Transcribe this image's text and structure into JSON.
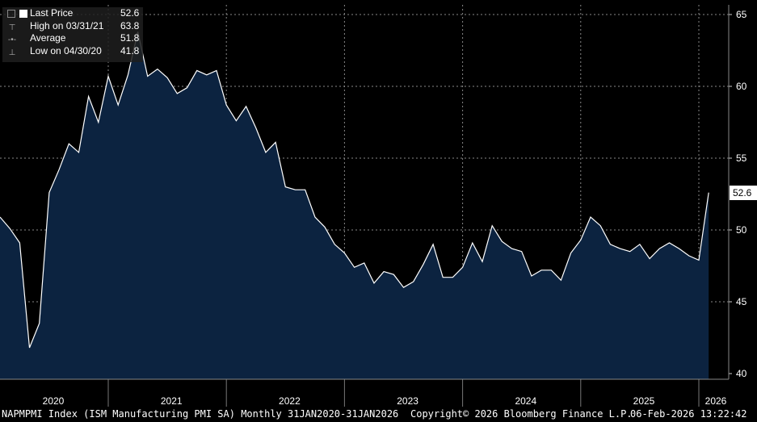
{
  "legend": {
    "last_label": "Last Price",
    "last_value": "52.6",
    "high_label": "High on 03/31/21",
    "high_value": "63.8",
    "avg_label": "Average",
    "avg_value": "51.8",
    "low_label": "Low on 04/30/20",
    "low_value": "41.8"
  },
  "footer": {
    "left": "NAPMPMI Index (ISM Manufacturing PMI SA) Monthly 31JAN2020-31JAN2026",
    "center": "Copyright© 2026 Bloomberg Finance L.P.",
    "right": "06-Feb-2026 13:22:42"
  },
  "colors": {
    "area": "#0c2340",
    "line": "#ffffff",
    "grid": "#888888",
    "background": "#000000"
  },
  "chart_data": {
    "type": "area",
    "x": [
      "2020-01",
      "2020-02",
      "2020-03",
      "2020-04",
      "2020-05",
      "2020-06",
      "2020-07",
      "2020-08",
      "2020-09",
      "2020-10",
      "2020-11",
      "2020-12",
      "2021-01",
      "2021-02",
      "2021-03",
      "2021-04",
      "2021-05",
      "2021-06",
      "2021-07",
      "2021-08",
      "2021-09",
      "2021-10",
      "2021-11",
      "2021-12",
      "2022-01",
      "2022-02",
      "2022-03",
      "2022-04",
      "2022-05",
      "2022-06",
      "2022-07",
      "2022-08",
      "2022-09",
      "2022-10",
      "2022-11",
      "2022-12",
      "2023-01",
      "2023-02",
      "2023-03",
      "2023-04",
      "2023-05",
      "2023-06",
      "2023-07",
      "2023-08",
      "2023-09",
      "2023-10",
      "2023-11",
      "2023-12",
      "2024-01",
      "2024-02",
      "2024-03",
      "2024-04",
      "2024-05",
      "2024-06",
      "2024-07",
      "2024-08",
      "2024-09",
      "2024-10",
      "2024-11",
      "2024-12",
      "2025-01",
      "2025-02",
      "2025-03",
      "2025-04",
      "2025-05",
      "2025-06",
      "2025-07",
      "2025-08",
      "2025-09",
      "2025-10",
      "2025-11",
      "2025-12",
      "2026-01"
    ],
    "series": [
      {
        "values": [
          50.9,
          50.1,
          49.1,
          41.8,
          43.5,
          52.6,
          54.2,
          56.0,
          55.4,
          59.3,
          57.5,
          60.7,
          58.7,
          60.8,
          63.8,
          60.7,
          61.2,
          60.6,
          59.5,
          59.9,
          61.1,
          60.8,
          61.1,
          58.7,
          57.6,
          58.6,
          57.1,
          55.4,
          56.1,
          53.0,
          52.8,
          52.8,
          50.9,
          50.2,
          49.0,
          48.4,
          47.4,
          47.7,
          46.3,
          47.1,
          46.9,
          46.0,
          46.4,
          47.6,
          49.0,
          46.7,
          46.7,
          47.4,
          49.1,
          47.8,
          50.3,
          49.2,
          48.7,
          48.5,
          46.8,
          47.2,
          47.2,
          46.5,
          48.4,
          49.3,
          50.9,
          50.3,
          49.0,
          48.7,
          48.5,
          49.0,
          48.0,
          48.7,
          49.1,
          48.7,
          48.2,
          47.9,
          52.6
        ]
      }
    ],
    "ylim": [
      40,
      65
    ],
    "y_ticks": [
      40,
      45,
      50,
      55,
      60,
      65
    ],
    "x_tick_labels": [
      "2020",
      "2021",
      "2022",
      "2023",
      "2024",
      "2025",
      "2026"
    ],
    "grid": true,
    "axis_side": "right",
    "last_value_label": "52.6"
  }
}
